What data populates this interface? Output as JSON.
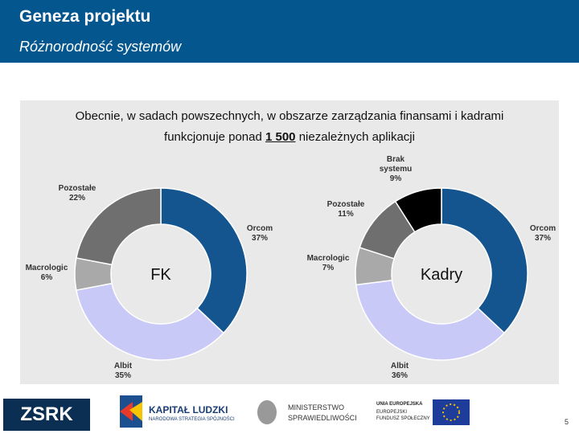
{
  "header": {
    "title": "Geneza projektu",
    "subtitle": "Różnorodność systemów"
  },
  "intro": {
    "line1": "Obecnie, w sadach powszechnych, w obszarze zarządzania finansami i kadrami",
    "before": "funkcjonuje ponad",
    "highlight": "1 500",
    "after": "niezależnych aplikacji"
  },
  "chart_data": [
    {
      "type": "donut",
      "center_label": "FK",
      "categories": [
        "Orcom",
        "Albit",
        "Macrologic",
        "Pozostałe"
      ],
      "values": [
        37,
        35,
        6,
        22
      ],
      "value_labels": [
        "37%",
        "35%",
        "6%",
        "22%"
      ],
      "colors": [
        "#15558f",
        "#c9c9f7",
        "#a9a9a9",
        "#6f6f6f"
      ]
    },
    {
      "type": "donut",
      "center_label": "Kadry",
      "categories": [
        "Orcom",
        "Albit",
        "Macrologic",
        "Pozostałe",
        "Brak systemu"
      ],
      "values": [
        37,
        36,
        7,
        11,
        9
      ],
      "value_labels": [
        "37%",
        "36%",
        "7%",
        "11%",
        "9%"
      ],
      "colors": [
        "#15558f",
        "#c9c9f7",
        "#a9a9a9",
        "#6f6f6f",
        "#000000"
      ]
    }
  ],
  "footer": {
    "zsrk": "ZSRK",
    "kl_title": "KAPITAŁ LUDZKI",
    "kl_sub": "NARODOWA STRATEGIA SPÓJNOŚCI",
    "ms1": "MINISTERSTWO",
    "ms2": "SPRAWIEDLIWOŚCI",
    "ue1": "UNIA EUROPEJSKA",
    "ue2": "EUROPEJSKI",
    "ue3": "FUNDUSZ SPOŁECZNY",
    "page": "5"
  }
}
